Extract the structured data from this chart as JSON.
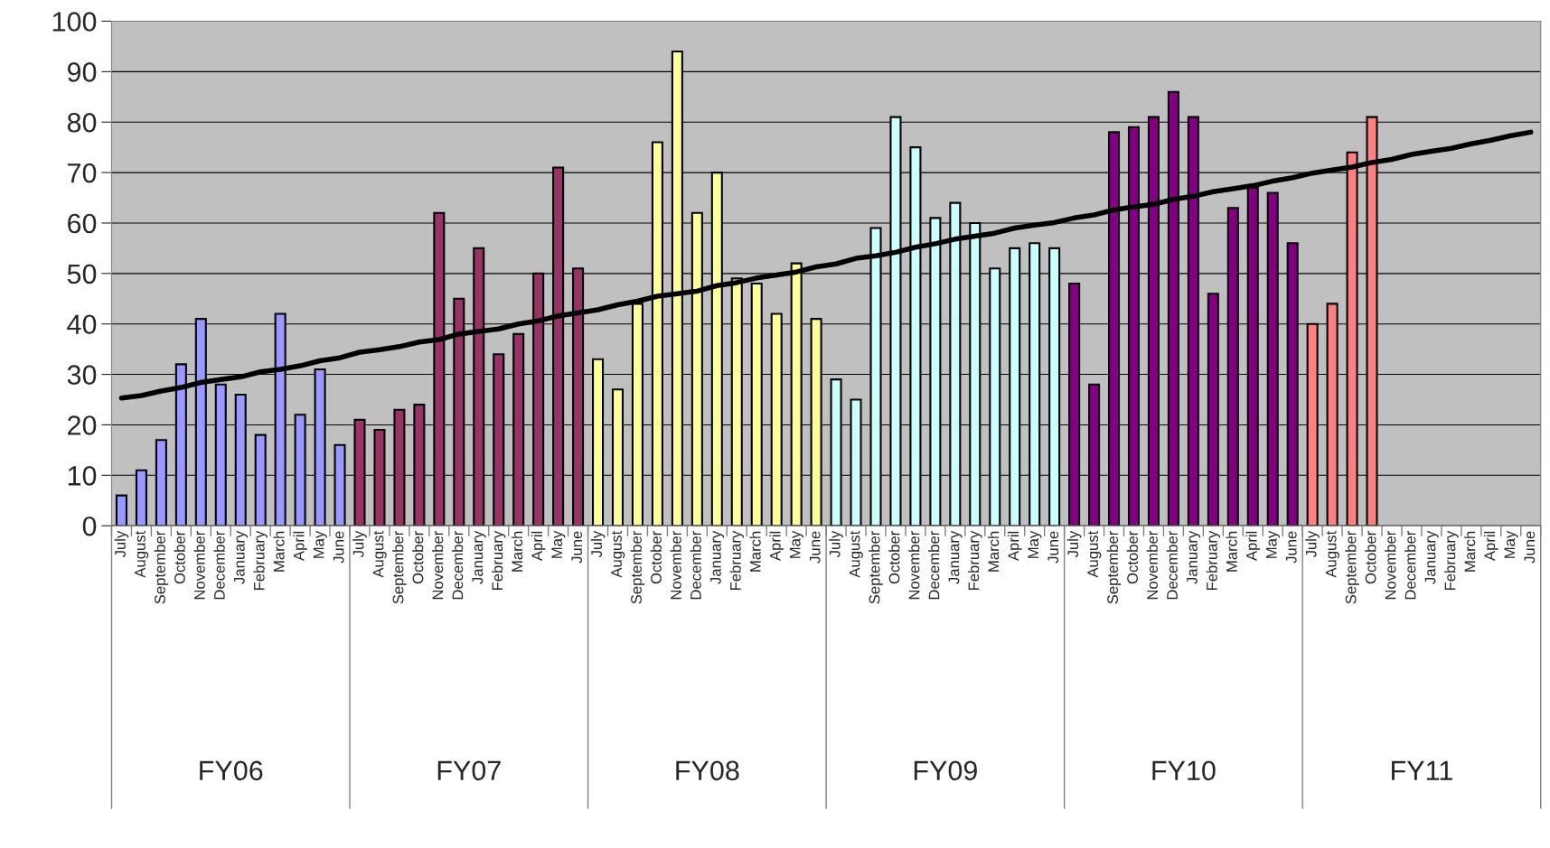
{
  "chart_data": {
    "type": "bar",
    "categories": [
      "July",
      "August",
      "September",
      "October",
      "November",
      "December",
      "January",
      "February",
      "March",
      "April",
      "May",
      "June",
      "July",
      "August",
      "September",
      "October",
      "November",
      "December",
      "January",
      "February",
      "March",
      "April",
      "May",
      "June",
      "July",
      "August",
      "September",
      "October",
      "November",
      "December",
      "January",
      "February",
      "March",
      "April",
      "May",
      "June",
      "July",
      "August",
      "September",
      "October",
      "November",
      "December",
      "January",
      "February",
      "March",
      "April",
      "May",
      "June",
      "July",
      "August",
      "September",
      "October",
      "November",
      "December",
      "January",
      "February",
      "March",
      "April",
      "May",
      "June",
      "July",
      "August",
      "September",
      "October",
      "November",
      "December",
      "January",
      "February",
      "March",
      "April",
      "May",
      "June"
    ],
    "series": [
      {
        "colors": [
          "#9999ff",
          "#9999ff",
          "#9999ff",
          "#9999ff",
          "#9999ff",
          "#9999ff",
          "#9999ff",
          "#9999ff",
          "#9999ff",
          "#9999ff",
          "#9999ff",
          "#9999ff",
          "#993366",
          "#993366",
          "#993366",
          "#993366",
          "#993366",
          "#993366",
          "#993366",
          "#993366",
          "#993366",
          "#993366",
          "#993366",
          "#993366",
          "#ffff99",
          "#ffff99",
          "#ffff99",
          "#ffff99",
          "#ffff99",
          "#ffff99",
          "#ffff99",
          "#ffff99",
          "#ffff99",
          "#ffff99",
          "#ffff99",
          "#ffff99",
          "#ccffff",
          "#ccffff",
          "#ccffff",
          "#ccffff",
          "#ccffff",
          "#ccffff",
          "#ccffff",
          "#ccffff",
          "#ccffff",
          "#ccffff",
          "#ccffff",
          "#ccffff",
          "#800080",
          "#800080",
          "#800080",
          "#800080",
          "#800080",
          "#800080",
          "#800080",
          "#800080",
          "#800080",
          "#800080",
          "#800080",
          "#800080",
          "#ff8080",
          "#ff8080",
          "#ff8080",
          "#ff8080",
          "#ff8080",
          "#ff8080",
          "#ff8080",
          "#ff8080",
          "#ff8080",
          "#ff8080",
          "#ff8080",
          "#ff8080"
        ],
        "values": [
          6,
          11,
          17,
          32,
          41,
          28,
          26,
          18,
          42,
          22,
          31,
          16,
          21,
          19,
          23,
          24,
          62,
          45,
          55,
          34,
          38,
          50,
          71,
          51,
          33,
          27,
          44,
          76,
          94,
          62,
          70,
          49,
          48,
          42,
          52,
          41,
          29,
          25,
          59,
          81,
          75,
          61,
          64,
          60,
          51,
          55,
          56,
          55,
          48,
          28,
          78,
          79,
          81,
          86,
          81,
          46,
          63,
          67,
          66,
          56,
          40,
          44,
          74,
          81,
          null,
          null,
          null,
          null,
          null,
          null,
          null,
          null
        ]
      },
      {
        "type": "line",
        "color": "#000000",
        "values": [
          25.3,
          25.8,
          26.7,
          27.4,
          28.4,
          29.0,
          29.5,
          30.5,
          31.0,
          31.7,
          32.7,
          33.3,
          34.4,
          34.9,
          35.5,
          36.4,
          36.9,
          38.0,
          38.5,
          39.0,
          40.0,
          40.6,
          41.6,
          42.2,
          42.8,
          43.8,
          44.5,
          45.5,
          46.0,
          46.5,
          47.6,
          48.2,
          49.1,
          49.7,
          50.3,
          51.3,
          51.9,
          53.0,
          53.5,
          54.2,
          55.2,
          55.9,
          56.8,
          57.4,
          58.0,
          59.0,
          59.6,
          60.1,
          61.0,
          61.6,
          62.6,
          63.2,
          63.7,
          64.7,
          65.3,
          66.2,
          66.8,
          67.4,
          68.3,
          69.0,
          69.9,
          70.5,
          71.1,
          72.0,
          72.6,
          73.6,
          74.2,
          74.8,
          75.7,
          76.4,
          77.3,
          78.0
        ]
      }
    ],
    "annotations": [
      "FY06",
      "FY07",
      "FY08",
      "FY09",
      "FY10",
      "FY11"
    ],
    "ylim": [
      0,
      100
    ],
    "yticks": [
      0,
      10,
      20,
      30,
      40,
      50,
      60,
      70,
      80,
      90,
      100
    ],
    "grid": "y",
    "legend": false,
    "marker": "none",
    "line_style": "solid"
  }
}
